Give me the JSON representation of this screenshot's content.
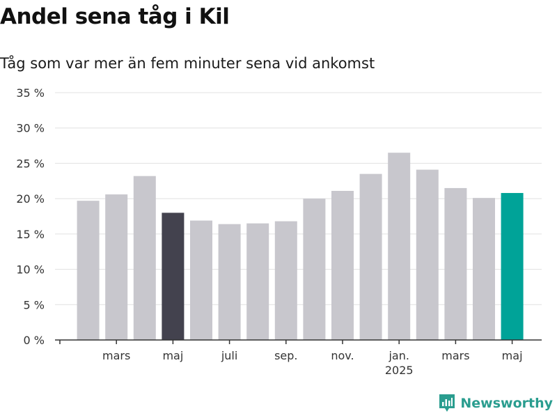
{
  "chart_data": {
    "type": "bar",
    "title": "Andel sena tåg i Kil",
    "subtitle": "Tåg som var mer än fem minuter sena vid ankomst",
    "xlabel": "",
    "ylabel": "",
    "ylim": [
      0,
      35
    ],
    "yticks": [
      0,
      5,
      10,
      15,
      20,
      25,
      30,
      35
    ],
    "ytick_labels": [
      "0 %",
      "5 %",
      "10 %",
      "15 %",
      "20 %",
      "25 %",
      "30 %",
      "35 %"
    ],
    "grid": true,
    "categories": [
      "2024-01",
      "2024-02",
      "2024-03",
      "2024-04",
      "2024-05",
      "2024-06",
      "2024-07",
      "2024-08",
      "2024-09",
      "2024-10",
      "2024-11",
      "2024-12",
      "2025-01",
      "2025-02",
      "2025-03",
      "2025-04",
      "2025-05"
    ],
    "values": [
      null,
      19.7,
      20.6,
      23.2,
      18.0,
      16.9,
      16.4,
      16.5,
      16.8,
      20.0,
      21.1,
      23.5,
      26.5,
      24.1,
      21.5,
      20.1,
      20.8
    ],
    "x_tick_labels": [
      {
        "index": 2,
        "label": "mars"
      },
      {
        "index": 4,
        "label": "maj"
      },
      {
        "index": 6,
        "label": "juli"
      },
      {
        "index": 8,
        "label": "sep."
      },
      {
        "index": 10,
        "label": "nov."
      },
      {
        "index": 12,
        "label": "jan.",
        "sublabel": "2025"
      },
      {
        "index": 14,
        "label": "mars"
      },
      {
        "index": 16,
        "label": "maj"
      }
    ],
    "highlights": [
      {
        "index": 4,
        "color": "#43424e"
      },
      {
        "index": 16,
        "color": "#00a398"
      }
    ],
    "colors": {
      "bar_default": "#c8c7cd",
      "grid": "#e0e0e0",
      "axis": "#333333"
    }
  },
  "branding": {
    "logo_text": "Newsworthy",
    "logo_color": "#2a9d8f"
  }
}
